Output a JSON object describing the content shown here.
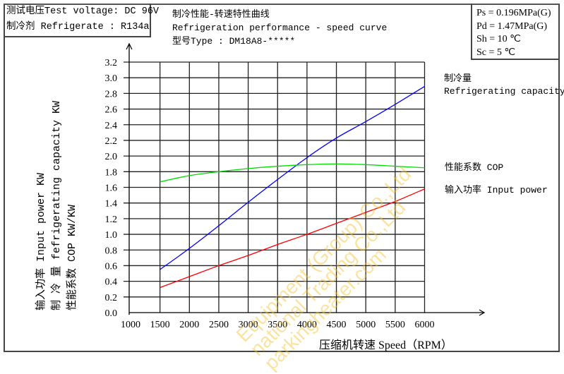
{
  "header": {
    "test_voltage": "测试电压Test voltage: DC 96V",
    "refrigerant": "制冷剂 Refrigerate : R134a",
    "title_cn": "制冷性能-转速特性曲线",
    "title_en": "Refrigeration performance - speed curve",
    "type": "型号Type : DM18A8-*****"
  },
  "conditions": {
    "ps": "Ps = 0.196MPa(G)",
    "pd": "Pd = 1.47MPa(G)",
    "sh": "Sh = 10 ℃",
    "sc": "Sc = 5 ℃"
  },
  "axes": {
    "ylabel_line1": "输入功率 Input power  KW",
    "ylabel_line2": "制 冷 量 fefrigerating capacity KW",
    "ylabel_line3": "性能系数 COP  KW/KW",
    "xlabel": "压缩机转速 Speed（RPM）"
  },
  "legend": {
    "capacity_cn": "制冷量",
    "capacity_en": "Refrigerating capacity",
    "cop": "性能系数 COP",
    "input": "输入功率  Input power"
  },
  "watermark": {
    "line1": "Equipment (Group) Co.,Ltd",
    "line2": "national Trading Co.,Ltd",
    "line3": "parkingheater.com"
  },
  "colors": {
    "capacity": "#0000ff",
    "cop": "#00dd00",
    "input": "#ff0000",
    "grid": "#000000"
  },
  "chart_data": {
    "type": "line",
    "title": "Refrigeration performance - speed curve",
    "xlabel": "压缩机转速 Speed (RPM)",
    "ylabel": "Input power KW / Refrigerating capacity KW / COP KW/KW",
    "xlim": [
      1000,
      6000
    ],
    "ylim": [
      0.0,
      3.2
    ],
    "xticks": [
      1000,
      1500,
      2000,
      2500,
      3000,
      3500,
      4000,
      4500,
      5000,
      5500,
      6000
    ],
    "yticks": [
      0.0,
      0.2,
      0.4,
      0.6,
      0.8,
      1.0,
      1.2,
      1.4,
      1.6,
      1.8,
      2.0,
      2.2,
      2.4,
      2.6,
      2.8,
      3.0,
      3.2
    ],
    "grid": true,
    "legend_position": "right",
    "x": [
      1500,
      2000,
      2500,
      3000,
      3500,
      4000,
      4500,
      5000,
      5500,
      6000
    ],
    "series": [
      {
        "name": "制冷量 Refrigerating capacity",
        "color": "#0000ff",
        "values": [
          0.55,
          0.82,
          1.11,
          1.41,
          1.7,
          1.98,
          2.23,
          2.44,
          2.66,
          2.89
        ]
      },
      {
        "name": "性能系数 COP",
        "color": "#00dd00",
        "values": [
          1.67,
          1.75,
          1.8,
          1.84,
          1.87,
          1.89,
          1.9,
          1.89,
          1.87,
          1.85
        ]
      },
      {
        "name": "输入功率 Input power",
        "color": "#ff0000",
        "values": [
          0.32,
          0.46,
          0.6,
          0.73,
          0.87,
          1.0,
          1.14,
          1.28,
          1.42,
          1.58
        ]
      }
    ]
  }
}
